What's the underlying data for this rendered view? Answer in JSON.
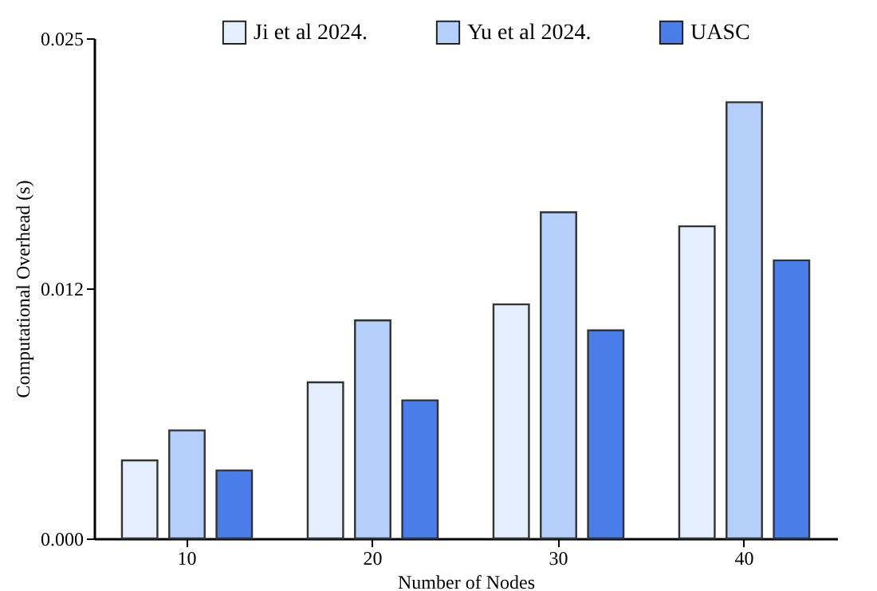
{
  "chart_data": {
    "type": "bar",
    "xlabel": "Number of Nodes",
    "ylabel": "Computational Overhead (s)",
    "categories": [
      "10",
      "20",
      "30",
      "40"
    ],
    "series": [
      {
        "name": "Ji et al 2024.",
        "color": "#e3effc",
        "values": [
          0.0039,
          0.0078,
          0.0117,
          0.0156
        ]
      },
      {
        "name": "Yu et al 2024.",
        "color": "#b3cffa",
        "values": [
          0.0054,
          0.0109,
          0.0163,
          0.0218
        ]
      },
      {
        "name": "UASC",
        "color": "#4a7de8",
        "values": [
          0.0034,
          0.0069,
          0.0104,
          0.0139
        ]
      }
    ],
    "ylim": [
      0,
      0.025
    ],
    "yticks": [
      {
        "value": 0,
        "label": "0.000"
      },
      {
        "value": 0.0125,
        "label": "0.012"
      },
      {
        "value": 0.025,
        "label": "0.025"
      }
    ],
    "grid": false,
    "legend": "top"
  }
}
